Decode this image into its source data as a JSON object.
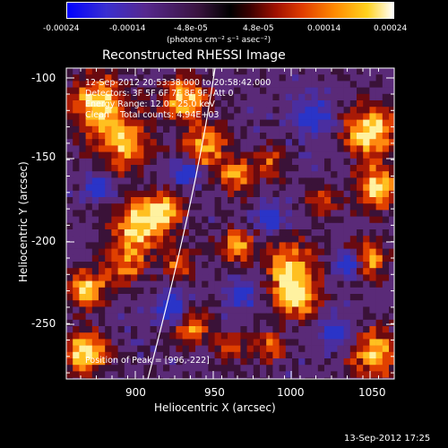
{
  "colorbar": {
    "tick_labels": [
      "-0.00024",
      "-0.00014",
      "-4.8e-05",
      "4.8e-05",
      "0.00014",
      "0.00024"
    ],
    "units": "(photons cm⁻² s⁻¹ asec⁻²)",
    "colors": [
      "#0000ff",
      "#4b2aa6",
      "#5a1f6c",
      "#000000",
      "#6a0000",
      "#c81e00",
      "#ff7a00",
      "#ffd21e",
      "#ffffff"
    ]
  },
  "image": {
    "title": "Reconstructed RHESSI Image",
    "time_range": "12-Sep-2012 20:53:38.000 to 20:58:42.000",
    "detectors": "Detectors: 3F 5F 6F 7F 8F 9F, Att 0",
    "energy_range": "Energy Range: 12.0 - 25.0 keV",
    "method_counts": "Clean    Total counts: 4.94E+03",
    "peak_position": "Position of Peak = [996,-222]"
  },
  "axes": {
    "xlabel": "Heliocentric X (arcsec)",
    "ylabel": "Heliocentric Y (arcsec)",
    "x_ticks": [
      "900",
      "950",
      "1000",
      "1050"
    ],
    "y_ticks": [
      "-100",
      "-150",
      "-200",
      "-250"
    ]
  },
  "footer": {
    "timestamp": "13-Sep-2012 17:25"
  }
}
